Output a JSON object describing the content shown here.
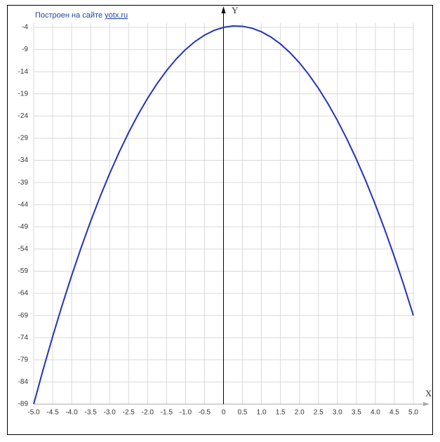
{
  "chart_data": {
    "type": "line",
    "title": "Построен на сайте",
    "link": "yotx.ru",
    "xlabel": "X",
    "ylabel": "Y",
    "x": [
      -5,
      -4.75,
      -4.5,
      -4.25,
      -4,
      -3.75,
      -3.5,
      -3.25,
      -3,
      -2.75,
      -2.5,
      -2.25,
      -2,
      -1.75,
      -1.5,
      -1.25,
      -1,
      -0.75,
      -0.5,
      -0.25,
      0,
      0.25,
      0.5,
      0.75,
      1,
      1.25,
      1.5,
      1.75,
      2,
      2.25,
      2.5,
      2.75,
      3,
      3.25,
      3.5,
      3.75,
      4,
      4.25,
      4.5,
      4.75,
      5
    ],
    "series": [
      {
        "color": "#2233bb",
        "values": [
          -89,
          -81.1875,
          -73.75,
          -66.6875,
          -60,
          -53.6875,
          -47.75,
          -42.1875,
          -37,
          -32.1875,
          -27.75,
          -23.6875,
          -20,
          -16.6875,
          -13.75,
          -11.1875,
          -9,
          -7.1875,
          -5.75,
          -4.6875,
          -4,
          -3.6875,
          -3.75,
          -4.1875,
          -5,
          -6.1875,
          -7.75,
          -9.6875,
          -12,
          -14.6875,
          -17.75,
          -21.1875,
          -25,
          -29.1875,
          -33.75,
          -38.6875,
          -44,
          -49.6875,
          -55.75,
          -62.1875,
          -69
        ]
      }
    ],
    "xlim": [
      -5,
      5
    ],
    "ylim": [
      -89,
      -3
    ],
    "xticks": [
      {
        "value": -5,
        "label": "-5.0"
      },
      -4.5,
      {
        "value": -4,
        "label": "-4.0"
      },
      -3.5,
      {
        "value": -3,
        "label": "-3.0"
      },
      -2.5,
      {
        "value": -2,
        "label": "-2.0"
      },
      -1.5,
      {
        "value": -1,
        "label": "-1.0"
      },
      -0.5,
      0,
      0.5,
      {
        "value": 1,
        "label": "1.0"
      },
      1.5,
      {
        "value": 2,
        "label": "2.0"
      },
      2.5,
      {
        "value": 3,
        "label": "3.0"
      },
      3.5,
      {
        "value": 4,
        "label": "4.0"
      },
      4.5,
      {
        "value": 5,
        "label": "5.0"
      }
    ],
    "yticks": [
      -89,
      -84,
      -79,
      -74,
      -69,
      -64,
      -59,
      -54,
      -49,
      -44,
      -39,
      -34,
      -29,
      -24,
      -19,
      -14,
      -9,
      -4
    ],
    "grid": true
  }
}
